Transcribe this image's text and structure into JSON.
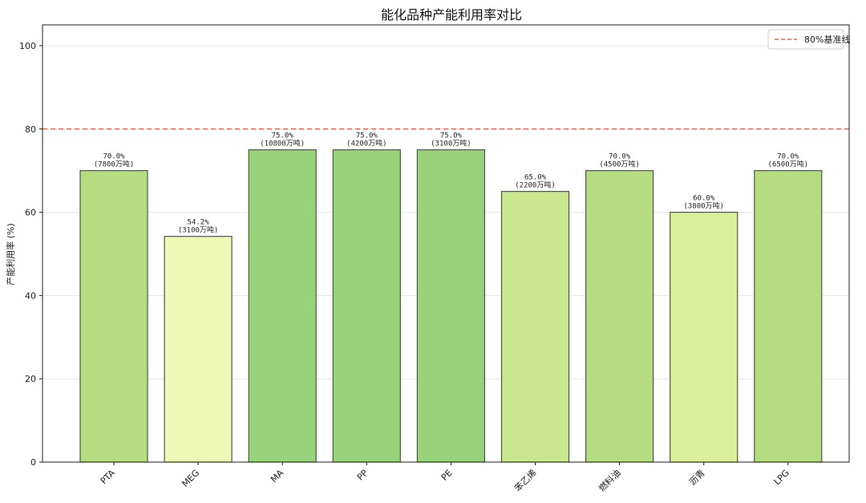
{
  "chart_data": {
    "type": "bar",
    "title": "能化品种产能利用率对比",
    "ylabel": "产能利用率 (%)",
    "xlabel": "",
    "ylim": [
      0,
      105
    ],
    "yticks": [
      "0",
      "20",
      "40",
      "60",
      "80",
      "100"
    ],
    "grid": "horizontal",
    "categories": [
      "PTA",
      "MEG",
      "MA",
      "PP",
      "PE",
      "苯乙烯",
      "燃料油",
      "沥青",
      "LPG"
    ],
    "values": [
      70.0,
      54.2,
      75.0,
      75.0,
      75.0,
      65.0,
      70.0,
      60.0,
      70.0
    ],
    "value_labels": [
      "70.0%",
      "54.2%",
      "75.0%",
      "75.0%",
      "75.0%",
      "65.0%",
      "70.0%",
      "60.0%",
      "70.0%"
    ],
    "capacity_labels": [
      "(7800万吨)",
      "(3100万吨)",
      "(10800万吨)",
      "(4200万吨)",
      "(3100万吨)",
      "(2200万吨)",
      "(4500万吨)",
      "(3800万吨)",
      "(6500万吨)"
    ],
    "bar_colors": [
      "#b5dd80",
      "#eef8b7",
      "#98d27b",
      "#98d27b",
      "#98d27b",
      "#c8e78f",
      "#b5dd80",
      "#dcf099",
      "#b5dd80"
    ],
    "reference_line": {
      "value": 80,
      "label": "80%基准线",
      "color": "#e06b5f",
      "style": "dashed"
    },
    "legend_position": "top-right"
  }
}
